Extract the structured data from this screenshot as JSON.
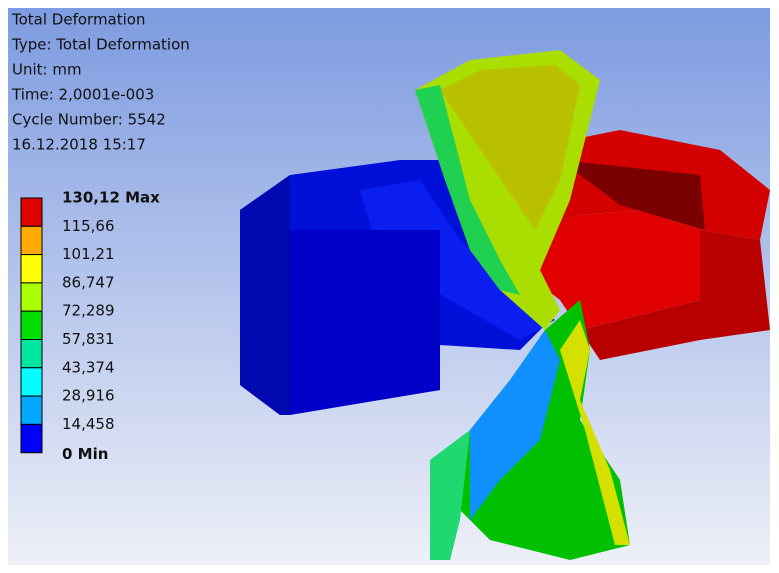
{
  "header": {
    "lines": [
      "Total Deformation",
      "Type: Total Deformation",
      "Unit: mm",
      "Time: 2,0001e-003",
      "Cycle Number: 5542",
      "16.12.2018 15:17"
    ]
  },
  "legend": {
    "labels": [
      "130,12 Max",
      "115,66",
      "101,21",
      "86,747",
      "72,289",
      "57,831",
      "43,374",
      "28,916",
      "14,458",
      "0 Min"
    ],
    "colors": [
      "#e00000",
      "#ffaa00",
      "#ffff00",
      "#aaff00",
      "#00e000",
      "#00e6a0",
      "#00ffff",
      "#00a8ff",
      "#0000ff"
    ]
  }
}
